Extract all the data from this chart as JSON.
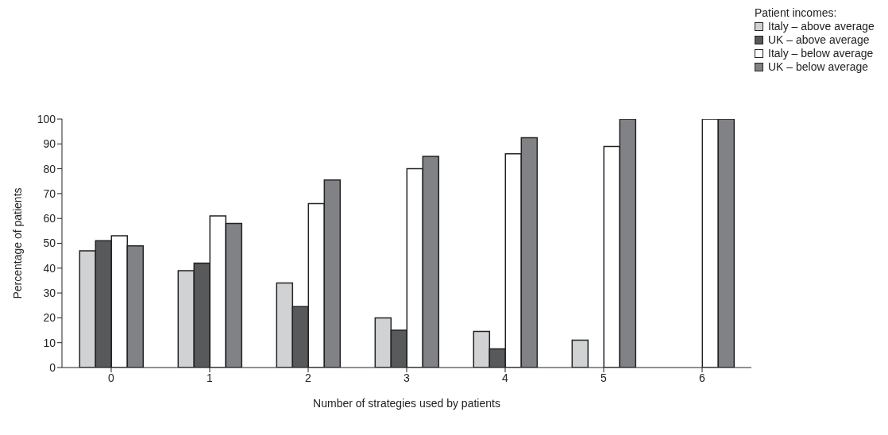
{
  "chart_data": {
    "type": "bar",
    "xlabel": "Number of strategies used by patients",
    "ylabel": "Percentage of patients",
    "legend_title": "Patient incomes:",
    "legend": "top right",
    "categories": [
      "0",
      "1",
      "2",
      "3",
      "4",
      "5",
      "6"
    ],
    "series": [
      {
        "name": "Italy – above average",
        "color": "#d1d2d4",
        "values": [
          47,
          39,
          34,
          20,
          14.5,
          11,
          null
        ]
      },
      {
        "name": "UK – above average",
        "color": "#58595b",
        "values": [
          51,
          42,
          24.5,
          15,
          7.5,
          null,
          null
        ]
      },
      {
        "name": "Italy – below average",
        "color": "#ffffff",
        "values": [
          53,
          61,
          66,
          80,
          86,
          89,
          100
        ]
      },
      {
        "name": "UK – below average",
        "color": "#808285",
        "values": [
          49,
          58,
          75.5,
          85,
          92.5,
          100,
          100
        ]
      }
    ],
    "ylim": [
      0,
      100
    ],
    "yticks": [
      0,
      10,
      20,
      30,
      40,
      50,
      60,
      70,
      80,
      90,
      100
    ],
    "grid": false
  }
}
